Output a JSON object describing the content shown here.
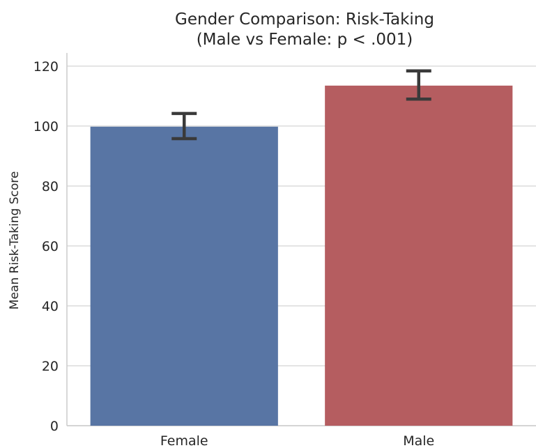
{
  "chart_data": {
    "type": "bar",
    "title": "Gender Comparison: Risk-Taking",
    "subtitle": "(Male vs Female: p < .001)",
    "xlabel": "",
    "ylabel": "Mean Risk-Taking Score",
    "categories": [
      "Female",
      "Male"
    ],
    "values": [
      99.8,
      113.5
    ],
    "error_bars": [
      {
        "low": 95.8,
        "high": 104.2
      },
      {
        "low": 109.0,
        "high": 118.4
      }
    ],
    "colors": [
      "#5875a4",
      "#b55d60"
    ],
    "error_bar_color": "#3a3a3a",
    "ylim": [
      0,
      124.4
    ],
    "yticks": [
      0,
      20,
      40,
      60,
      80,
      100,
      120
    ],
    "ytick_labels": [
      "0",
      "20",
      "40",
      "60",
      "80",
      "100",
      "120"
    ],
    "grid": "horizontal",
    "legend": "none"
  }
}
